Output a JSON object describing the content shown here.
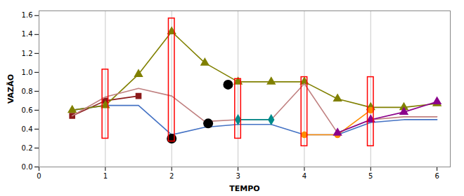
{
  "chart_data": {
    "type": "line",
    "xlabel": "TEMPO",
    "ylabel": "VAZÃO",
    "xlim": [
      0,
      6.2
    ],
    "ylim": [
      0,
      1.65
    ],
    "xticks": [
      0,
      1,
      2,
      3,
      4,
      5,
      6
    ],
    "yticks": [
      {
        "value": 0,
        "label": "0.0"
      },
      0.2,
      0.4,
      0.6,
      0.8,
      {
        "value": 1.0,
        "label": "1.0"
      },
      1.2,
      1.4,
      1.6
    ],
    "series": [
      {
        "color": "#8B1A1A",
        "marker": "square",
        "line_style": "solid",
        "x": [
          0.5,
          1.0,
          1.5
        ],
        "values": [
          0.54,
          0.7,
          0.75
        ]
      },
      {
        "color": "#4472C4",
        "marker": "none",
        "line_style": "solid",
        "x": [
          0.5,
          1.0,
          1.5,
          2.0,
          2.5,
          3.0,
          3.5,
          4.0,
          4.5,
          5.0,
          5.5,
          6.0
        ],
        "values": [
          0.6,
          0.65,
          0.65,
          0.34,
          0.42,
          0.45,
          0.45,
          0.34,
          0.34,
          0.47,
          0.5,
          0.5
        ]
      },
      {
        "color": "#808000",
        "marker": "triangle",
        "line_style": "solid",
        "x": [
          0.5,
          1.0,
          1.5,
          2.0,
          2.5,
          3.0,
          3.5,
          4.0,
          4.5,
          5.0,
          5.5,
          6.0
        ],
        "values": [
          0.6,
          0.65,
          0.98,
          1.43,
          1.1,
          0.9,
          0.9,
          0.9,
          0.72,
          0.63,
          0.63,
          0.67
        ]
      },
      {
        "color": "#C08080",
        "marker": "none",
        "line_style": "solid",
        "x": [
          0.5,
          1.0,
          1.5,
          2.0,
          2.5,
          3.0,
          3.5,
          4.0,
          4.5,
          5.0,
          5.5,
          6.0
        ],
        "values": [
          0.54,
          0.74,
          0.83,
          0.75,
          0.48,
          0.5,
          0.5,
          0.88,
          0.36,
          0.5,
          0.53,
          0.53
        ]
      },
      {
        "color": "#008B8B",
        "marker": "diamond",
        "line_style": "solid",
        "x": [
          3.0,
          3.5
        ],
        "values": [
          0.5,
          0.5
        ]
      },
      {
        "color": "#FF8C00",
        "marker": "circle",
        "line_style": "solid",
        "x": [
          4.0,
          4.5,
          5.0
        ],
        "values": [
          0.34,
          0.34,
          0.6
        ]
      },
      {
        "color": "#8B008B",
        "marker": "triangle",
        "line_style": "solid",
        "x": [
          4.5,
          5.0,
          5.5,
          6.0
        ],
        "values": [
          0.36,
          0.5,
          0.58,
          0.69
        ]
      }
    ],
    "dots": {
      "color": "black",
      "x": [
        2.0,
        2.55,
        2.85
      ],
      "y": [
        0.3,
        0.46,
        0.87
      ]
    },
    "rectangles": {
      "color": "red",
      "x": [
        0.955,
        1.955,
        2.955,
        3.955,
        4.955
      ],
      "y_bottom": [
        0.3,
        0.27,
        0.3,
        0.22,
        0.22
      ],
      "width": [
        0.09,
        0.09,
        0.09,
        0.09,
        0.09
      ],
      "height": [
        0.73,
        1.3,
        0.63,
        0.73,
        0.73
      ]
    },
    "vlines": {
      "color": "#BBBBBB",
      "x": [
        1.0,
        2.0,
        3.0,
        4.0,
        5.0
      ]
    }
  }
}
